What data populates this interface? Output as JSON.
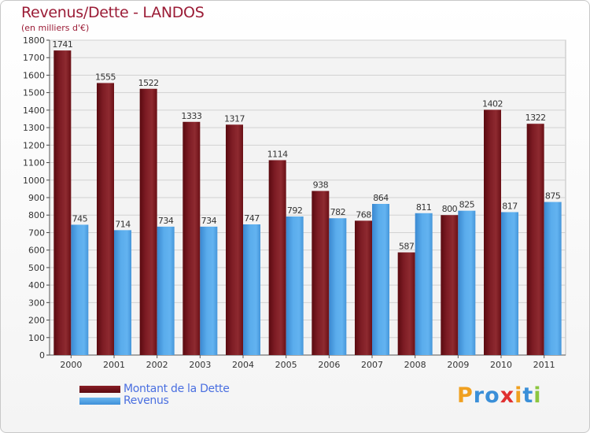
{
  "chart_data": {
    "type": "bar",
    "title": "Revenus/Dette - LANDOS",
    "subtitle": "(en milliers d'€)",
    "categories": [
      "2000",
      "2001",
      "2002",
      "2003",
      "2004",
      "2005",
      "2006",
      "2007",
      "2008",
      "2009",
      "2010",
      "2011"
    ],
    "series": [
      {
        "name": "Montant de la Dette",
        "values": [
          1741,
          1555,
          1522,
          1333,
          1317,
          1114,
          938,
          768,
          587,
          800,
          1402,
          1322
        ],
        "color": "#7a1a22"
      },
      {
        "name": "Revenus",
        "values": [
          745,
          714,
          734,
          734,
          747,
          792,
          782,
          864,
          811,
          825,
          817,
          875
        ],
        "color": "#4da3e6"
      }
    ],
    "ylim": [
      0,
      1800
    ],
    "yticks": [
      0,
      100,
      200,
      300,
      400,
      500,
      600,
      700,
      800,
      900,
      1000,
      1100,
      1200,
      1300,
      1400,
      1500,
      1600,
      1700,
      1800
    ],
    "grid": true,
    "legend_position": "bottom-left"
  },
  "logo": {
    "letters": [
      "P",
      "r",
      "o",
      "x",
      "i",
      "t",
      "i"
    ],
    "colors": [
      "#f0a020",
      "#3a8fd8",
      "#3a8fd8",
      "#e03030",
      "#f0a020",
      "#3a8fd8",
      "#8cc63f"
    ]
  }
}
